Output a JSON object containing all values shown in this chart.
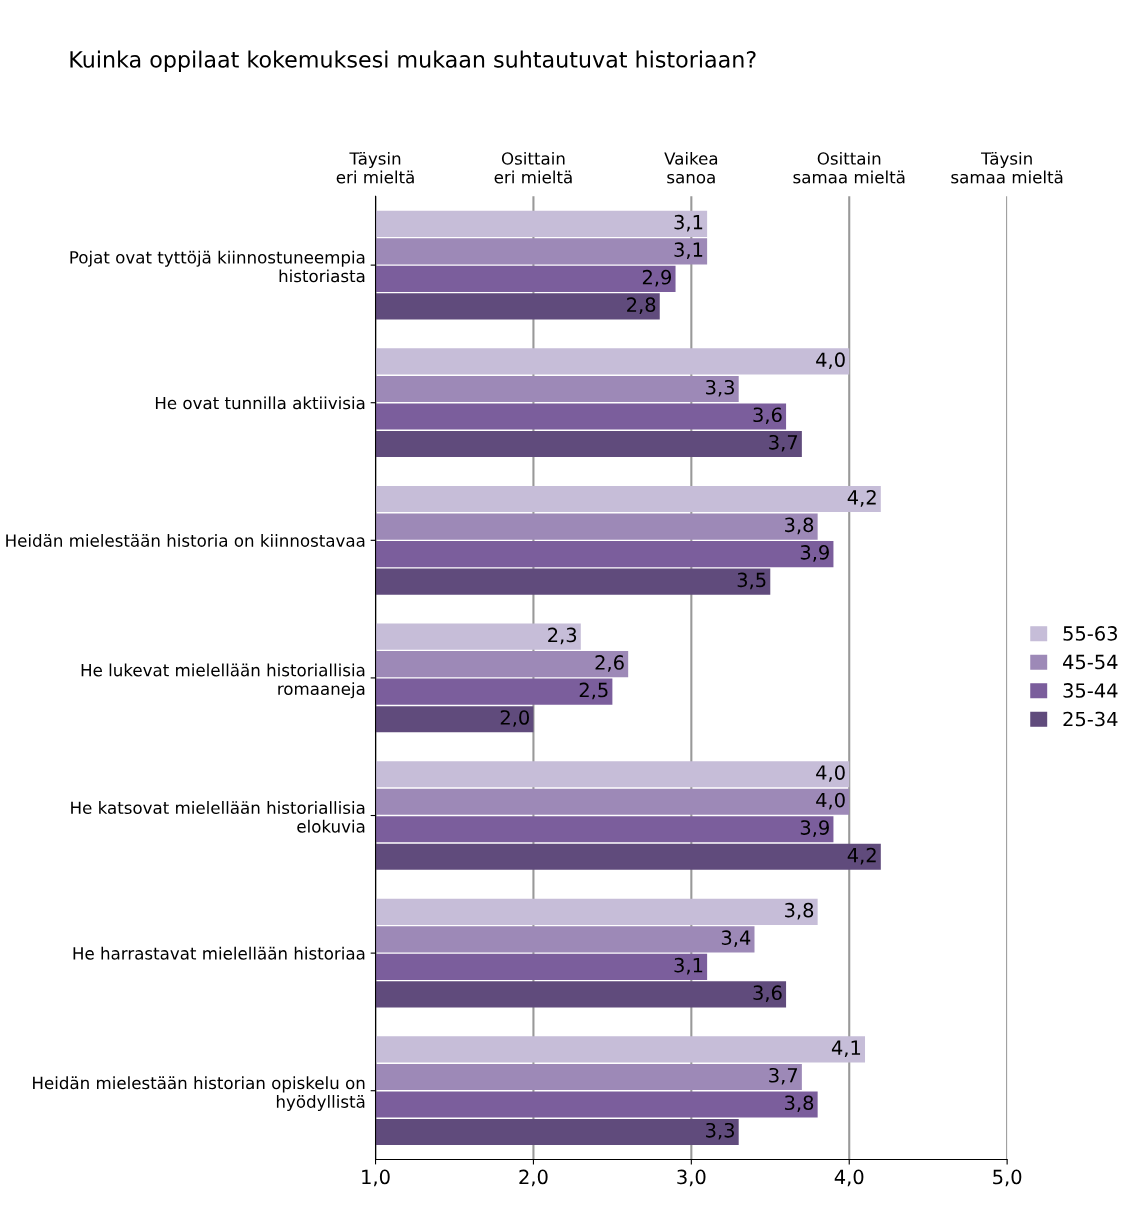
{
  "chart_data": {
    "type": "bar",
    "orientation": "horizontal",
    "title": "Kuinka oppilaat kokemuksesi mukaan suhtautuvat historiaan?",
    "categories": [
      "Pojat ovat tyttöjä kiinnostuneempia historiasta",
      "He ovat tunnilla aktiivisia",
      "Heidän mielestään historia on kiinnostavaa",
      "He lukevat mielellään historiallisia romaaneja",
      "He katsovat mielellään historiallisia elokuvia",
      "He harrastavat mielellään historiaa",
      "Heidän mielestään historian opiskelu on hyödyllistä"
    ],
    "series": [
      {
        "name": "55-63",
        "color": "#c6bdd8",
        "values": [
          3.1,
          4.0,
          4.2,
          2.3,
          4.0,
          3.8,
          4.1
        ],
        "value_labels": [
          "3,1",
          "4,0",
          "4,2",
          "2,3",
          "4,0",
          "3,8",
          "4,1"
        ]
      },
      {
        "name": "45-54",
        "color": "#9d89b7",
        "values": [
          3.1,
          3.3,
          3.8,
          2.6,
          4.0,
          3.4,
          3.7
        ],
        "value_labels": [
          "3,1",
          "3,3",
          "3,8",
          "2,6",
          "4,0",
          "3,4",
          "3,7"
        ]
      },
      {
        "name": "35-44",
        "color": "#7b5e9c",
        "values": [
          2.9,
          3.6,
          3.9,
          2.5,
          3.9,
          3.1,
          3.8
        ],
        "value_labels": [
          "2,9",
          "3,6",
          "3,9",
          "2,5",
          "3,9",
          "3,1",
          "3,8"
        ]
      },
      {
        "name": "25-34",
        "color": "#604b7c",
        "values": [
          2.8,
          3.7,
          3.5,
          2.0,
          4.2,
          3.6,
          3.3
        ],
        "value_labels": [
          "2,8",
          "3,7",
          "3,5",
          "2,0",
          "4,2",
          "3,6",
          "3,3"
        ]
      }
    ],
    "xlim": [
      1,
      5
    ],
    "xticks": [
      {
        "value": 1,
        "label": "1,0"
      },
      {
        "value": 2,
        "label": "2,0"
      },
      {
        "value": 3,
        "label": "3,0"
      },
      {
        "value": 4,
        "label": "4,0"
      },
      {
        "value": 5,
        "label": "5,0"
      }
    ],
    "annotations": [
      "Täysin\neri mieltä",
      "Osittain\neri mieltä",
      "Vaikea\nsanoa",
      "Osittain\nsamaa mieltä",
      "Täysin\nsamaa mieltä"
    ],
    "grid": "x",
    "legend": "right"
  }
}
